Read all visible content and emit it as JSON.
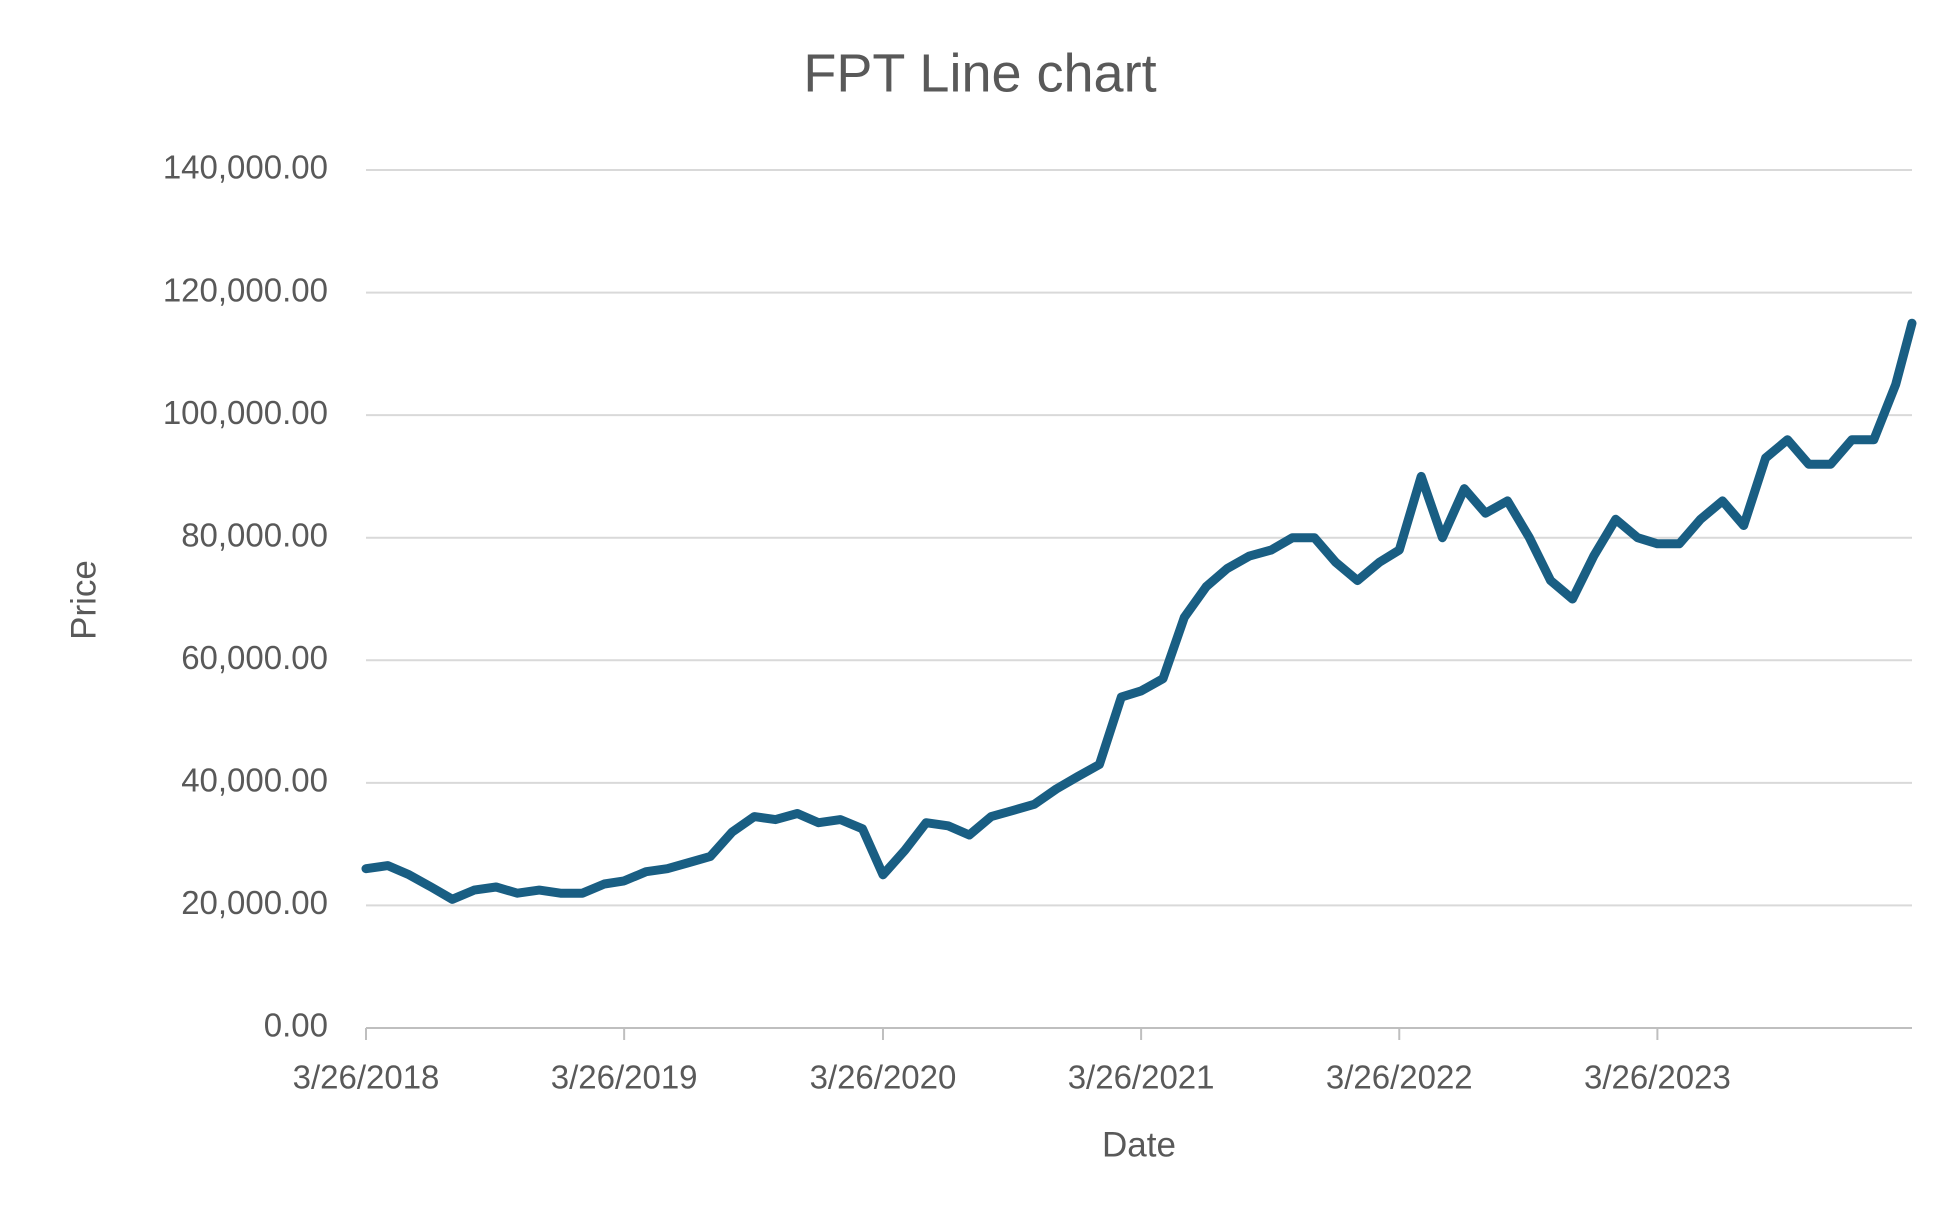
{
  "chart_data": {
    "type": "line",
    "title": "FPT Line chart",
    "x_label": "Date",
    "y_label": "Price",
    "color": "#195e83",
    "grid": true,
    "x": [
      "3/26/2018",
      "4/26/2018",
      "5/26/2018",
      "6/26/2018",
      "7/26/2018",
      "8/26/2018",
      "9/26/2018",
      "10/26/2018",
      "11/26/2018",
      "12/26/2018",
      "1/26/2019",
      "2/26/2019",
      "3/26/2019",
      "4/26/2019",
      "5/26/2019",
      "6/26/2019",
      "7/26/2019",
      "8/26/2019",
      "9/26/2019",
      "10/26/2019",
      "11/26/2019",
      "12/26/2019",
      "1/26/2020",
      "2/26/2020",
      "3/26/2020",
      "4/26/2020",
      "5/26/2020",
      "6/26/2020",
      "7/26/2020",
      "8/26/2020",
      "9/26/2020",
      "10/26/2020",
      "11/26/2020",
      "12/26/2020",
      "1/26/2021",
      "2/26/2021",
      "3/26/2021",
      "4/26/2021",
      "5/26/2021",
      "6/26/2021",
      "7/26/2021",
      "8/26/2021",
      "9/26/2021",
      "10/26/2021",
      "11/26/2021",
      "12/26/2021",
      "1/26/2022",
      "2/26/2022",
      "3/26/2022",
      "4/26/2022",
      "5/26/2022",
      "6/26/2022",
      "7/26/2022",
      "8/26/2022",
      "9/26/2022",
      "10/26/2022",
      "11/26/2022",
      "12/26/2022",
      "1/26/2023",
      "2/26/2023",
      "3/26/2023",
      "4/26/2023",
      "5/26/2023",
      "6/26/2023",
      "7/26/2023",
      "8/26/2023",
      "9/26/2023",
      "10/26/2023",
      "11/26/2023",
      "12/26/2023",
      "1/26/2024",
      "2/26/2024",
      "3/20/2024"
    ],
    "values": [
      26000,
      26500,
      25000,
      23000,
      21000,
      22500,
      23000,
      22000,
      22500,
      22000,
      22000,
      23500,
      24000,
      25500,
      26000,
      27000,
      28000,
      32000,
      34500,
      34000,
      35000,
      33500,
      34000,
      32500,
      25000,
      29000,
      33500,
      33000,
      31500,
      34500,
      35500,
      36500,
      39000,
      41000,
      43000,
      54000,
      55000,
      57000,
      67000,
      72000,
      75000,
      77000,
      78000,
      80000,
      80000,
      76000,
      73000,
      76000,
      78000,
      90000,
      80000,
      88000,
      84000,
      86000,
      80000,
      73000,
      70000,
      77000,
      83000,
      80000,
      79000,
      79000,
      83000,
      86000,
      82000,
      93000,
      96000,
      92000,
      92000,
      96000,
      96000,
      105000,
      115000
    ],
    "xlim": [
      "3/26/2018",
      "3/20/2024"
    ],
    "xticks": [
      "3/26/2018",
      "3/26/2019",
      "3/26/2020",
      "3/26/2021",
      "3/26/2022",
      "3/26/2023"
    ],
    "ylim": [
      0,
      140000
    ],
    "yticks": [
      {
        "value": 0,
        "label": "0.00"
      },
      {
        "value": 20000,
        "label": "20,000.00"
      },
      {
        "value": 40000,
        "label": "40,000.00"
      },
      {
        "value": 60000,
        "label": "60,000.00"
      },
      {
        "value": 80000,
        "label": "80,000.00"
      },
      {
        "value": 100000,
        "label": "100,000.00"
      },
      {
        "value": 120000,
        "label": "120,000.00"
      },
      {
        "value": 140000,
        "label": "140,000.00"
      }
    ]
  }
}
